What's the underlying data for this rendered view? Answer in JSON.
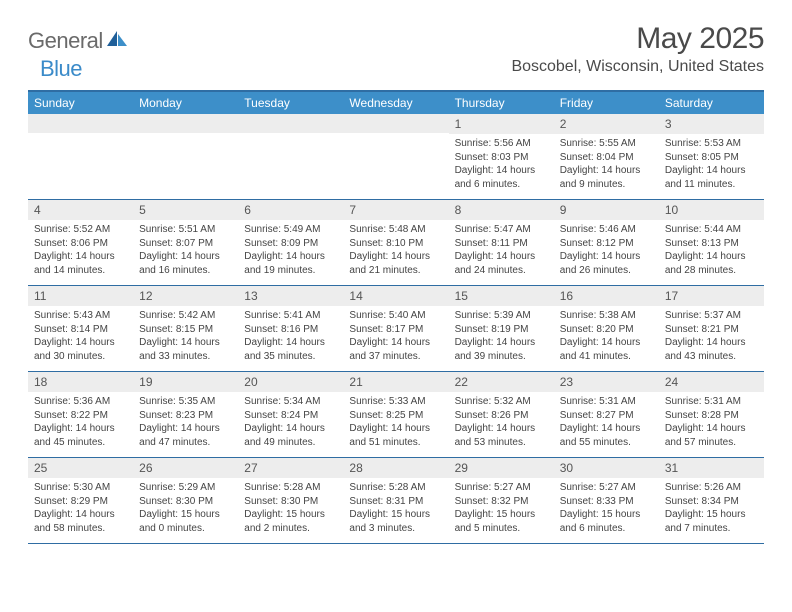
{
  "logo": {
    "part1": "General",
    "part2": "Blue"
  },
  "title": "May 2025",
  "location": "Boscobel, Wisconsin, United States",
  "colors": {
    "header_bg": "#3d8fc9",
    "header_text": "#ffffff",
    "border": "#2f6da3",
    "daynum_bg": "#ededed",
    "daynum_text": "#555555",
    "body_text": "#444444",
    "logo_gray": "#6a6a6a",
    "logo_blue": "#3b8bc9",
    "title_text": "#4a4a4a"
  },
  "day_names": [
    "Sunday",
    "Monday",
    "Tuesday",
    "Wednesday",
    "Thursday",
    "Friday",
    "Saturday"
  ],
  "weeks": [
    [
      null,
      null,
      null,
      null,
      {
        "n": "1",
        "sr": "5:56 AM",
        "ss": "8:03 PM",
        "dl": "14 hours and 6 minutes."
      },
      {
        "n": "2",
        "sr": "5:55 AM",
        "ss": "8:04 PM",
        "dl": "14 hours and 9 minutes."
      },
      {
        "n": "3",
        "sr": "5:53 AM",
        "ss": "8:05 PM",
        "dl": "14 hours and 11 minutes."
      }
    ],
    [
      {
        "n": "4",
        "sr": "5:52 AM",
        "ss": "8:06 PM",
        "dl": "14 hours and 14 minutes."
      },
      {
        "n": "5",
        "sr": "5:51 AM",
        "ss": "8:07 PM",
        "dl": "14 hours and 16 minutes."
      },
      {
        "n": "6",
        "sr": "5:49 AM",
        "ss": "8:09 PM",
        "dl": "14 hours and 19 minutes."
      },
      {
        "n": "7",
        "sr": "5:48 AM",
        "ss": "8:10 PM",
        "dl": "14 hours and 21 minutes."
      },
      {
        "n": "8",
        "sr": "5:47 AM",
        "ss": "8:11 PM",
        "dl": "14 hours and 24 minutes."
      },
      {
        "n": "9",
        "sr": "5:46 AM",
        "ss": "8:12 PM",
        "dl": "14 hours and 26 minutes."
      },
      {
        "n": "10",
        "sr": "5:44 AM",
        "ss": "8:13 PM",
        "dl": "14 hours and 28 minutes."
      }
    ],
    [
      {
        "n": "11",
        "sr": "5:43 AM",
        "ss": "8:14 PM",
        "dl": "14 hours and 30 minutes."
      },
      {
        "n": "12",
        "sr": "5:42 AM",
        "ss": "8:15 PM",
        "dl": "14 hours and 33 minutes."
      },
      {
        "n": "13",
        "sr": "5:41 AM",
        "ss": "8:16 PM",
        "dl": "14 hours and 35 minutes."
      },
      {
        "n": "14",
        "sr": "5:40 AM",
        "ss": "8:17 PM",
        "dl": "14 hours and 37 minutes."
      },
      {
        "n": "15",
        "sr": "5:39 AM",
        "ss": "8:19 PM",
        "dl": "14 hours and 39 minutes."
      },
      {
        "n": "16",
        "sr": "5:38 AM",
        "ss": "8:20 PM",
        "dl": "14 hours and 41 minutes."
      },
      {
        "n": "17",
        "sr": "5:37 AM",
        "ss": "8:21 PM",
        "dl": "14 hours and 43 minutes."
      }
    ],
    [
      {
        "n": "18",
        "sr": "5:36 AM",
        "ss": "8:22 PM",
        "dl": "14 hours and 45 minutes."
      },
      {
        "n": "19",
        "sr": "5:35 AM",
        "ss": "8:23 PM",
        "dl": "14 hours and 47 minutes."
      },
      {
        "n": "20",
        "sr": "5:34 AM",
        "ss": "8:24 PM",
        "dl": "14 hours and 49 minutes."
      },
      {
        "n": "21",
        "sr": "5:33 AM",
        "ss": "8:25 PM",
        "dl": "14 hours and 51 minutes."
      },
      {
        "n": "22",
        "sr": "5:32 AM",
        "ss": "8:26 PM",
        "dl": "14 hours and 53 minutes."
      },
      {
        "n": "23",
        "sr": "5:31 AM",
        "ss": "8:27 PM",
        "dl": "14 hours and 55 minutes."
      },
      {
        "n": "24",
        "sr": "5:31 AM",
        "ss": "8:28 PM",
        "dl": "14 hours and 57 minutes."
      }
    ],
    [
      {
        "n": "25",
        "sr": "5:30 AM",
        "ss": "8:29 PM",
        "dl": "14 hours and 58 minutes."
      },
      {
        "n": "26",
        "sr": "5:29 AM",
        "ss": "8:30 PM",
        "dl": "15 hours and 0 minutes."
      },
      {
        "n": "27",
        "sr": "5:28 AM",
        "ss": "8:30 PM",
        "dl": "15 hours and 2 minutes."
      },
      {
        "n": "28",
        "sr": "5:28 AM",
        "ss": "8:31 PM",
        "dl": "15 hours and 3 minutes."
      },
      {
        "n": "29",
        "sr": "5:27 AM",
        "ss": "8:32 PM",
        "dl": "15 hours and 5 minutes."
      },
      {
        "n": "30",
        "sr": "5:27 AM",
        "ss": "8:33 PM",
        "dl": "15 hours and 6 minutes."
      },
      {
        "n": "31",
        "sr": "5:26 AM",
        "ss": "8:34 PM",
        "dl": "15 hours and 7 minutes."
      }
    ]
  ],
  "labels": {
    "sunrise": "Sunrise: ",
    "sunset": "Sunset: ",
    "daylight": "Daylight: "
  }
}
